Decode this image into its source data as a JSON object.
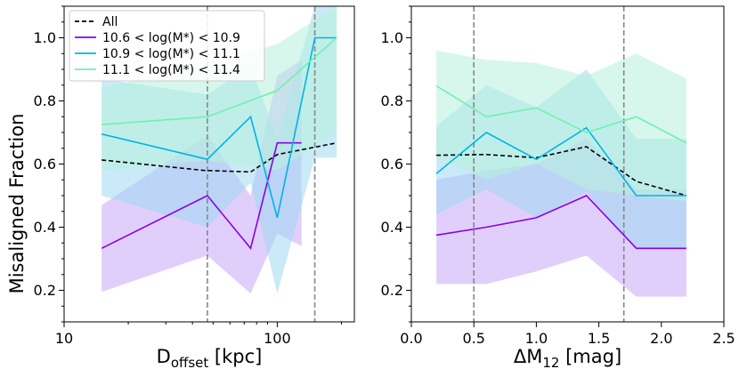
{
  "chart_data": [
    {
      "type": "line",
      "xlabel_main": "D",
      "xlabel_sub": "offset",
      "xlabel_unit": " [kpc]",
      "ylabel": "Misaligned Fraction",
      "xscale": "log",
      "xlim": [
        10,
        230
      ],
      "ylim": [
        0.1,
        1.1
      ],
      "xticks": [
        10,
        100
      ],
      "yticks": [
        0.2,
        0.4,
        0.6,
        0.8,
        1.0
      ],
      "ytick_labels": [
        "0.2",
        "0.4",
        "0.6",
        "0.8",
        "1.0"
      ],
      "vlines": [
        47,
        150
      ],
      "legend": "top-left",
      "series": [
        {
          "name": "All",
          "color": "#000000",
          "style": "dashed",
          "x": [
            15,
            45,
            75,
            100,
            190
          ],
          "y": [
            0.613,
            0.58,
            0.575,
            0.63,
            0.667
          ]
        },
        {
          "name": "10.6 < log(M*) < 10.9",
          "color": "#8800ee",
          "band": "#c8a8f8",
          "x": [
            15,
            47,
            75,
            100,
            130
          ],
          "y": [
            0.333,
            0.5,
            0.333,
            0.667,
            0.667
          ],
          "lo": [
            0.195,
            0.31,
            0.19,
            0.38,
            0.34
          ],
          "hi": [
            0.47,
            0.69,
            0.5,
            0.88,
            0.93
          ]
        },
        {
          "name": "10.9 < log(M*) < 11.1",
          "color": "#00b4e6",
          "band": "#9ed8f3",
          "x": [
            15,
            47,
            75,
            100,
            150,
            190
          ],
          "y": [
            0.695,
            0.615,
            0.75,
            0.43,
            1.0,
            1.0
          ],
          "lo": [
            0.5,
            0.4,
            0.54,
            0.19,
            0.62,
            0.62
          ],
          "hi": [
            0.87,
            0.82,
            0.91,
            0.68,
            1.1,
            1.1
          ]
        },
        {
          "name": "11.1 < log(M*) < 11.4",
          "color": "#70f0b0",
          "band": "#b6f1dd",
          "x": [
            15,
            47,
            100,
            190
          ],
          "y": [
            0.725,
            0.75,
            0.833,
            1.0
          ],
          "lo": [
            0.58,
            0.61,
            0.58,
            0.7
          ],
          "hi": [
            0.84,
            0.92,
            0.98,
            1.1
          ]
        }
      ]
    },
    {
      "type": "line",
      "xlabel_main": "ΔM",
      "xlabel_sub": "12",
      "xlabel_unit": " [mag]",
      "ylabel": "",
      "xscale": "linear",
      "xlim": [
        0.0,
        2.5
      ],
      "ylim": [
        0.1,
        1.1
      ],
      "xticks": [
        0.0,
        0.5,
        1.0,
        1.5,
        2.0,
        2.5
      ],
      "xtick_labels": [
        "0.0",
        "0.5",
        "1.0",
        "1.5",
        "2.0",
        "2.5"
      ],
      "yticks": [
        0.2,
        0.4,
        0.6,
        0.8,
        1.0
      ],
      "ytick_labels": [
        "0.2",
        "0.4",
        "0.6",
        "0.8",
        "1.0"
      ],
      "vlines": [
        0.5,
        1.7
      ],
      "series": [
        {
          "name": "All",
          "color": "#000000",
          "style": "dashed",
          "x": [
            0.2,
            0.6,
            1.0,
            1.4,
            1.8,
            2.2
          ],
          "y": [
            0.628,
            0.63,
            0.62,
            0.655,
            0.545,
            0.5
          ]
        },
        {
          "name": "10.6 < log(M*) < 10.9",
          "color": "#8800ee",
          "band": "#c8a8f8",
          "x": [
            0.2,
            0.6,
            1.0,
            1.4,
            1.8,
            2.2
          ],
          "y": [
            0.375,
            0.4,
            0.43,
            0.5,
            0.333,
            0.333
          ],
          "lo": [
            0.22,
            0.22,
            0.26,
            0.31,
            0.18,
            0.18
          ],
          "hi": [
            0.55,
            0.58,
            0.6,
            0.68,
            0.52,
            0.52
          ]
        },
        {
          "name": "10.9 < log(M*) < 11.1",
          "color": "#00b4e6",
          "band": "#9ed8f3",
          "x": [
            0.2,
            0.6,
            1.0,
            1.4,
            1.8,
            2.2
          ],
          "y": [
            0.57,
            0.7,
            0.615,
            0.715,
            0.5,
            0.5
          ],
          "lo": [
            0.44,
            0.52,
            0.43,
            0.51,
            0.33,
            0.33
          ],
          "hi": [
            0.72,
            0.85,
            0.78,
            0.9,
            0.68,
            0.68
          ]
        },
        {
          "name": "11.1 < log(M*) < 11.4",
          "color": "#70f0b0",
          "band": "#b6f1dd",
          "x": [
            0.2,
            0.6,
            1.0,
            1.4,
            1.8,
            2.2
          ],
          "y": [
            0.848,
            0.75,
            0.778,
            0.7,
            0.75,
            0.667
          ],
          "lo": [
            0.62,
            0.55,
            0.6,
            0.52,
            0.5,
            0.48
          ],
          "hi": [
            0.96,
            0.93,
            0.92,
            0.88,
            0.95,
            0.87
          ]
        }
      ]
    }
  ]
}
